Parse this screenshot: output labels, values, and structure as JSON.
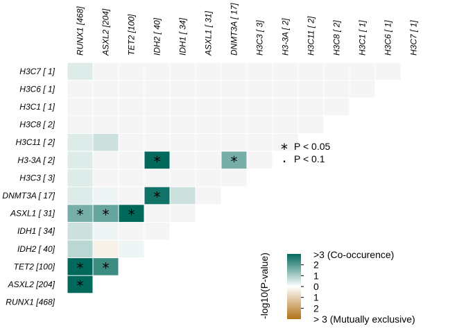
{
  "chart_data": {
    "type": "heatmap",
    "genes": [
      "RUNX1 [468]",
      "ASXL2 [204]",
      "TET2 [100]",
      "IDH2 [ 40]",
      "IDH1 [ 34]",
      "ASXL1 [ 31]",
      "DNMT3A [ 17]",
      "H3C3 [  3]",
      "H3-3A [  2]",
      "H3C11 [  2]",
      "H3C8 [  2]",
      "H3C1 [  1]",
      "H3C6 [  1]",
      "H3C7 [  1]"
    ],
    "row_labels": [
      "H3C7 [  1]",
      "H3C6 [  1]",
      "H3C1 [  1]",
      "H3C8 [  2]",
      "H3C11 [  2]",
      "H3-3A [  2]",
      "H3C3 [  3]",
      "DNMT3A [ 17]",
      "ASXL1 [ 31]",
      "IDH1 [ 34]",
      "IDH2 [ 40]",
      "TET2 [100]",
      "ASXL2 [204]",
      "RUNX1 [468]"
    ],
    "col_labels": [
      "RUNX1 [468]",
      "ASXL2 [204]",
      "TET2 [100]",
      "IDH2 [ 40]",
      "IDH1 [ 34]",
      "ASXL1 [ 31]",
      "DNMT3A [ 17]",
      "H3C3 [  3]",
      "H3-3A [  2]",
      "H3C11 [  2]",
      "H3C8 [  2]",
      "H3C1 [  1]",
      "H3C6 [  1]",
      "H3C7 [  1]"
    ],
    "note": "value = signed -log10(P-value); positive = co-occurrence, negative = mutually exclusive",
    "cells": [
      {
        "row": "ASXL2 [204]",
        "col": "RUNX1 [468]",
        "value": 3,
        "sig": "*"
      },
      {
        "row": "TET2 [100]",
        "col": "RUNX1 [468]",
        "value": 3,
        "sig": "*"
      },
      {
        "row": "TET2 [100]",
        "col": "ASXL2 [204]",
        "value": 2.3,
        "sig": "*"
      },
      {
        "row": "IDH2 [ 40]",
        "col": "RUNX1 [468]",
        "value": 0.8,
        "sig": ""
      },
      {
        "row": "IDH2 [ 40]",
        "col": "ASXL2 [204]",
        "value": -0.3,
        "sig": ""
      },
      {
        "row": "IDH2 [ 40]",
        "col": "TET2 [100]",
        "value": 0.2,
        "sig": ""
      },
      {
        "row": "IDH1 [ 34]",
        "col": "RUNX1 [468]",
        "value": 0.6,
        "sig": ""
      },
      {
        "row": "IDH1 [ 34]",
        "col": "ASXL2 [204]",
        "value": 0.2,
        "sig": ""
      },
      {
        "row": "IDH1 [ 34]",
        "col": "TET2 [100]",
        "value": 0,
        "sig": ""
      },
      {
        "row": "IDH1 [ 34]",
        "col": "IDH2 [ 40]",
        "value": 0,
        "sig": ""
      },
      {
        "row": "ASXL1 [ 31]",
        "col": "RUNX1 [468]",
        "value": 1.6,
        "sig": "*"
      },
      {
        "row": "ASXL1 [ 31]",
        "col": "ASXL2 [204]",
        "value": 1.8,
        "sig": "*"
      },
      {
        "row": "ASXL1 [ 31]",
        "col": "TET2 [100]",
        "value": 3,
        "sig": "*"
      },
      {
        "row": "ASXL1 [ 31]",
        "col": "IDH2 [ 40]",
        "value": 0,
        "sig": ""
      },
      {
        "row": "ASXL1 [ 31]",
        "col": "IDH1 [ 34]",
        "value": 0,
        "sig": ""
      },
      {
        "row": "DNMT3A [ 17]",
        "col": "RUNX1 [468]",
        "value": 0.4,
        "sig": ""
      },
      {
        "row": "DNMT3A [ 17]",
        "col": "ASXL2 [204]",
        "value": 0.2,
        "sig": ""
      },
      {
        "row": "DNMT3A [ 17]",
        "col": "TET2 [100]",
        "value": 0,
        "sig": ""
      },
      {
        "row": "DNMT3A [ 17]",
        "col": "IDH2 [ 40]",
        "value": 2.8,
        "sig": "*"
      },
      {
        "row": "DNMT3A [ 17]",
        "col": "IDH1 [ 34]",
        "value": 0.6,
        "sig": ""
      },
      {
        "row": "DNMT3A [ 17]",
        "col": "ASXL1 [ 31]",
        "value": 0,
        "sig": ""
      },
      {
        "row": "H3C3 [  3]",
        "col": "RUNX1 [468]",
        "value": 0.4,
        "sig": ""
      },
      {
        "row": "H3C3 [  3]",
        "col": "ASXL2 [204]",
        "value": 0,
        "sig": ""
      },
      {
        "row": "H3C3 [  3]",
        "col": "TET2 [100]",
        "value": 0,
        "sig": ""
      },
      {
        "row": "H3C3 [  3]",
        "col": "IDH2 [ 40]",
        "value": 0,
        "sig": ""
      },
      {
        "row": "H3C3 [  3]",
        "col": "IDH1 [ 34]",
        "value": 0,
        "sig": ""
      },
      {
        "row": "H3C3 [  3]",
        "col": "ASXL1 [ 31]",
        "value": 0,
        "sig": ""
      },
      {
        "row": "H3C3 [  3]",
        "col": "DNMT3A [ 17]",
        "value": 0,
        "sig": ""
      },
      {
        "row": "H3-3A [  2]",
        "col": "RUNX1 [468]",
        "value": 0.4,
        "sig": ""
      },
      {
        "row": "H3-3A [  2]",
        "col": "ASXL2 [204]",
        "value": 0,
        "sig": ""
      },
      {
        "row": "H3-3A [  2]",
        "col": "TET2 [100]",
        "value": 0,
        "sig": ""
      },
      {
        "row": "H3-3A [  2]",
        "col": "IDH2 [ 40]",
        "value": 3,
        "sig": "*"
      },
      {
        "row": "H3-3A [  2]",
        "col": "IDH1 [ 34]",
        "value": 0,
        "sig": ""
      },
      {
        "row": "H3-3A [  2]",
        "col": "ASXL1 [ 31]",
        "value": 0,
        "sig": ""
      },
      {
        "row": "H3-3A [  2]",
        "col": "DNMT3A [ 17]",
        "value": 1.6,
        "sig": "*"
      },
      {
        "row": "H3-3A [  2]",
        "col": "H3C3 [  3]",
        "value": 0,
        "sig": ""
      },
      {
        "row": "H3C11 [  2]",
        "col": "RUNX1 [468]",
        "value": 0.4,
        "sig": ""
      },
      {
        "row": "H3C11 [  2]",
        "col": "ASXL2 [204]",
        "value": 0.6,
        "sig": ""
      },
      {
        "row": "H3C11 [  2]",
        "col": "TET2 [100]",
        "value": 0,
        "sig": ""
      },
      {
        "row": "H3C11 [  2]",
        "col": "IDH2 [ 40]",
        "value": 0,
        "sig": ""
      },
      {
        "row": "H3C11 [  2]",
        "col": "IDH1 [ 34]",
        "value": 0,
        "sig": ""
      },
      {
        "row": "H3C11 [  2]",
        "col": "ASXL1 [ 31]",
        "value": 0,
        "sig": ""
      },
      {
        "row": "H3C11 [  2]",
        "col": "DNMT3A [ 17]",
        "value": 0,
        "sig": ""
      },
      {
        "row": "H3C11 [  2]",
        "col": "H3C3 [  3]",
        "value": 0,
        "sig": ""
      },
      {
        "row": "H3C11 [  2]",
        "col": "H3-3A [  2]",
        "value": 0,
        "sig": ""
      },
      {
        "row": "H3C8 [  2]",
        "col": "RUNX1 [468]",
        "value": 0,
        "sig": ""
      },
      {
        "row": "H3C8 [  2]",
        "col": "ASXL2 [204]",
        "value": 0,
        "sig": ""
      },
      {
        "row": "H3C8 [  2]",
        "col": "TET2 [100]",
        "value": 0,
        "sig": ""
      },
      {
        "row": "H3C8 [  2]",
        "col": "IDH2 [ 40]",
        "value": 0,
        "sig": ""
      },
      {
        "row": "H3C8 [  2]",
        "col": "IDH1 [ 34]",
        "value": 0,
        "sig": ""
      },
      {
        "row": "H3C8 [  2]",
        "col": "ASXL1 [ 31]",
        "value": 0,
        "sig": ""
      },
      {
        "row": "H3C8 [  2]",
        "col": "DNMT3A [ 17]",
        "value": 0,
        "sig": ""
      },
      {
        "row": "H3C8 [  2]",
        "col": "H3C3 [  3]",
        "value": 0,
        "sig": ""
      },
      {
        "row": "H3C8 [  2]",
        "col": "H3-3A [  2]",
        "value": 0,
        "sig": ""
      },
      {
        "row": "H3C8 [  2]",
        "col": "H3C11 [  2]",
        "value": 0,
        "sig": ""
      },
      {
        "row": "H3C1 [  1]",
        "col": "RUNX1 [468]",
        "value": 0,
        "sig": ""
      },
      {
        "row": "H3C1 [  1]",
        "col": "ASXL2 [204]",
        "value": 0,
        "sig": ""
      },
      {
        "row": "H3C1 [  1]",
        "col": "TET2 [100]",
        "value": 0,
        "sig": ""
      },
      {
        "row": "H3C1 [  1]",
        "col": "IDH2 [ 40]",
        "value": 0,
        "sig": ""
      },
      {
        "row": "H3C1 [  1]",
        "col": "IDH1 [ 34]",
        "value": 0,
        "sig": ""
      },
      {
        "row": "H3C1 [  1]",
        "col": "ASXL1 [ 31]",
        "value": 0,
        "sig": ""
      },
      {
        "row": "H3C1 [  1]",
        "col": "DNMT3A [ 17]",
        "value": 0,
        "sig": ""
      },
      {
        "row": "H3C1 [  1]",
        "col": "H3C3 [  3]",
        "value": 0,
        "sig": ""
      },
      {
        "row": "H3C1 [  1]",
        "col": "H3-3A [  2]",
        "value": 0,
        "sig": ""
      },
      {
        "row": "H3C1 [  1]",
        "col": "H3C11 [  2]",
        "value": 0,
        "sig": ""
      },
      {
        "row": "H3C1 [  1]",
        "col": "H3C8 [  2]",
        "value": 0,
        "sig": ""
      },
      {
        "row": "H3C6 [  1]",
        "col": "RUNX1 [468]",
        "value": 0,
        "sig": ""
      },
      {
        "row": "H3C6 [  1]",
        "col": "ASXL2 [204]",
        "value": 0,
        "sig": ""
      },
      {
        "row": "H3C6 [  1]",
        "col": "TET2 [100]",
        "value": 0,
        "sig": ""
      },
      {
        "row": "H3C6 [  1]",
        "col": "IDH2 [ 40]",
        "value": 0,
        "sig": ""
      },
      {
        "row": "H3C6 [  1]",
        "col": "IDH1 [ 34]",
        "value": 0,
        "sig": ""
      },
      {
        "row": "H3C6 [  1]",
        "col": "ASXL1 [ 31]",
        "value": 0,
        "sig": ""
      },
      {
        "row": "H3C6 [  1]",
        "col": "DNMT3A [ 17]",
        "value": 0,
        "sig": ""
      },
      {
        "row": "H3C6 [  1]",
        "col": "H3C3 [  3]",
        "value": 0,
        "sig": ""
      },
      {
        "row": "H3C6 [  1]",
        "col": "H3-3A [  2]",
        "value": 0,
        "sig": ""
      },
      {
        "row": "H3C6 [  1]",
        "col": "H3C11 [  2]",
        "value": 0,
        "sig": ""
      },
      {
        "row": "H3C6 [  1]",
        "col": "H3C8 [  2]",
        "value": 0,
        "sig": ""
      },
      {
        "row": "H3C6 [  1]",
        "col": "H3C1 [  1]",
        "value": 0,
        "sig": ""
      },
      {
        "row": "H3C7 [  1]",
        "col": "RUNX1 [468]",
        "value": 0.4,
        "sig": ""
      },
      {
        "row": "H3C7 [  1]",
        "col": "ASXL2 [204]",
        "value": 0,
        "sig": ""
      },
      {
        "row": "H3C7 [  1]",
        "col": "TET2 [100]",
        "value": 0,
        "sig": ""
      },
      {
        "row": "H3C7 [  1]",
        "col": "IDH2 [ 40]",
        "value": 0,
        "sig": ""
      },
      {
        "row": "H3C7 [  1]",
        "col": "IDH1 [ 34]",
        "value": 0,
        "sig": ""
      },
      {
        "row": "H3C7 [  1]",
        "col": "ASXL1 [ 31]",
        "value": 0,
        "sig": ""
      },
      {
        "row": "H3C7 [  1]",
        "col": "DNMT3A [ 17]",
        "value": 0,
        "sig": ""
      },
      {
        "row": "H3C7 [  1]",
        "col": "H3C3 [  3]",
        "value": 0,
        "sig": ""
      },
      {
        "row": "H3C7 [  1]",
        "col": "H3-3A [  2]",
        "value": 0,
        "sig": ""
      },
      {
        "row": "H3C7 [  1]",
        "col": "H3C11 [  2]",
        "value": 0,
        "sig": ""
      },
      {
        "row": "H3C7 [  1]",
        "col": "H3C8 [  2]",
        "value": 0,
        "sig": ""
      },
      {
        "row": "H3C7 [  1]",
        "col": "H3C1 [  1]",
        "value": 0,
        "sig": ""
      },
      {
        "row": "H3C7 [  1]",
        "col": "H3C6 [  1]",
        "value": 0,
        "sig": ""
      }
    ],
    "sig_legend": [
      {
        "symbol": "*",
        "label": "P < 0.05"
      },
      {
        "symbol": "·",
        "label": "P < 0.1"
      }
    ],
    "colorbar": {
      "title": "-log10(P-value)",
      "range": [
        -3,
        3
      ],
      "tick_labels": [
        "2",
        "1",
        "0",
        "1",
        "2"
      ],
      "tick_values": [
        2,
        1,
        0,
        -1,
        -2
      ],
      "top_label": ">3 (Co-occurence)",
      "bottom_label": "> 3 (Mutually exclusive)",
      "colors": {
        "high": "#00695c",
        "mid": "#ffffff",
        "low": "#b07116"
      }
    },
    "empty_cell_color": "#f5f5f5"
  }
}
